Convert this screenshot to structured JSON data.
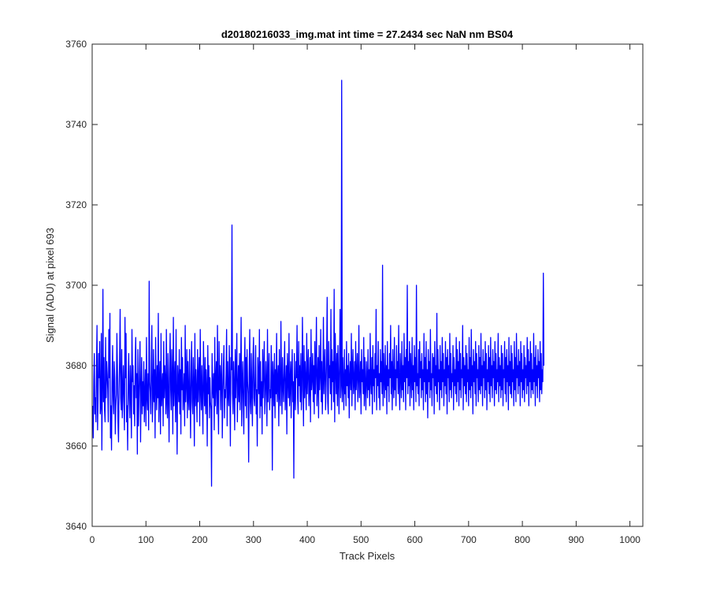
{
  "chart_data": {
    "type": "line",
    "title": "d20180216033_img.mat int time = 27.2434 sec  NaN nm BS04",
    "xlabel": "Track Pixels",
    "ylabel": "Signal (ADU) at pixel 693",
    "xlim": [
      0,
      1024
    ],
    "ylim": [
      3640,
      3760
    ],
    "xticks": [
      0,
      100,
      200,
      300,
      400,
      500,
      600,
      700,
      800,
      900,
      1000
    ],
    "yticks": [
      3640,
      3660,
      3680,
      3700,
      3720,
      3740,
      3760
    ],
    "grid": false,
    "series_color": "#0000ff",
    "series": [
      {
        "x_start": 1,
        "x_step": 1,
        "values": [
          3670,
          3662,
          3676,
          3683,
          3668,
          3672,
          3666,
          3679,
          3690,
          3664,
          3672,
          3683,
          3677,
          3686,
          3668,
          3670,
          3688,
          3659,
          3675,
          3699,
          3671,
          3682,
          3669,
          3666,
          3687,
          3672,
          3681,
          3678,
          3674,
          3666,
          3689,
          3677,
          3693,
          3662,
          3670,
          3659,
          3676,
          3685,
          3672,
          3668,
          3681,
          3677,
          3663,
          3670,
          3673,
          3688,
          3679,
          3666,
          3661,
          3674,
          3681,
          3694,
          3672,
          3669,
          3684,
          3667,
          3674,
          3680,
          3671,
          3664,
          3692,
          3677,
          3688,
          3666,
          3670,
          3659,
          3677,
          3683,
          3672,
          3667,
          3680,
          3674,
          3662,
          3689,
          3676,
          3680,
          3668,
          3675,
          3665,
          3681,
          3687,
          3672,
          3678,
          3658,
          3684,
          3665,
          3672,
          3679,
          3686,
          3661,
          3674,
          3682,
          3668,
          3676,
          3670,
          3681,
          3666,
          3673,
          3679,
          3665,
          3687,
          3672,
          3669,
          3678,
          3664,
          3701,
          3676,
          3673,
          3668,
          3681,
          3690,
          3666,
          3672,
          3684,
          3671,
          3679,
          3662,
          3687,
          3675,
          3669,
          3680,
          3672,
          3693,
          3666,
          3676,
          3681,
          3663,
          3688,
          3670,
          3674,
          3678,
          3665,
          3686,
          3672,
          3680,
          3676,
          3668,
          3689,
          3671,
          3667,
          3683,
          3673,
          3661,
          3679,
          3688,
          3674,
          3669,
          3684,
          3677,
          3663,
          3692,
          3670,
          3676,
          3681,
          3666,
          3689,
          3673,
          3658,
          3680,
          3676,
          3671,
          3684,
          3668,
          3679,
          3663,
          3687,
          3674,
          3682,
          3669,
          3673,
          3678,
          3665,
          3690,
          3671,
          3676,
          3684,
          3667,
          3681,
          3672,
          3669,
          3684,
          3673,
          3662,
          3678,
          3686,
          3671,
          3668,
          3682,
          3675,
          3660,
          3688,
          3670,
          3679,
          3673,
          3666,
          3684,
          3671,
          3677,
          3682,
          3665,
          3689,
          3674,
          3669,
          3680,
          3672,
          3663,
          3686,
          3676,
          3670,
          3682,
          3668,
          3679,
          3674,
          3660,
          3685,
          3673,
          3680,
          3667,
          3677,
          3671,
          3669,
          3650,
          3683,
          3675,
          3672,
          3678,
          3664,
          3687,
          3670,
          3676,
          3681,
          3668,
          3690,
          3672,
          3663,
          3686,
          3674,
          3680,
          3669,
          3677,
          3683,
          3662,
          3673,
          3679,
          3685,
          3667,
          3674,
          3672,
          3678,
          3689,
          3665,
          3681,
          3673,
          3670,
          3685,
          3676,
          3660,
          3682,
          3679,
          3715,
          3673,
          3668,
          3681,
          3675,
          3664,
          3684,
          3672,
          3679,
          3688,
          3666,
          3674,
          3680,
          3671,
          3683,
          3669,
          3677,
          3692,
          3665,
          3675,
          3681,
          3671,
          3663,
          3679,
          3687,
          3670,
          3682,
          3667,
          3684,
          3676,
          3673,
          3656,
          3678,
          3689,
          3671,
          3668,
          3683,
          3674,
          3665,
          3681,
          3687,
          3672,
          3670,
          3677,
          3685,
          3668,
          3674,
          3660,
          3682,
          3676,
          3673,
          3689,
          3667,
          3681,
          3670,
          3676,
          3663,
          3684,
          3672,
          3679,
          3686,
          3668,
          3673,
          3681,
          3675,
          3665,
          3689,
          3671,
          3677,
          3683,
          3669,
          3674,
          3672,
          3685,
          3678,
          3654,
          3681,
          3676,
          3670,
          3683,
          3667,
          3679,
          3673,
          3688,
          3671,
          3676,
          3680,
          3665,
          3684,
          3673,
          3670,
          3691,
          3677,
          3668,
          3682,
          3675,
          3671,
          3679,
          3686,
          3669,
          3674,
          3680,
          3663,
          3683,
          3677,
          3672,
          3688,
          3670,
          3675,
          3681,
          3667,
          3678,
          3684,
          3671,
          3676,
          3652,
          3683,
          3674,
          3669,
          3681,
          3677,
          3690,
          3672,
          3668,
          3686,
          3675,
          3680,
          3671,
          3683,
          3669,
          3674,
          3692,
          3678,
          3665,
          3685,
          3672,
          3681,
          3676,
          3669,
          3688,
          3673,
          3679,
          3684,
          3670,
          3675,
          3682,
          3666,
          3689,
          3674,
          3677,
          3683,
          3671,
          3680,
          3668,
          3686,
          3673,
          3679,
          3692,
          3670,
          3676,
          3682,
          3667,
          3685,
          3674,
          3678,
          3689,
          3671,
          3681,
          3668,
          3676,
          3692,
          3673,
          3679,
          3684,
          3669,
          3675,
          3682,
          3697,
          3671,
          3668,
          3686,
          3677,
          3680,
          3673,
          3694,
          3669,
          3684,
          3676,
          3681,
          3671,
          3699,
          3666,
          3688,
          3679,
          3673,
          3683,
          3670,
          3685,
          3677,
          3668,
          3681,
          3694,
          3672,
          3675,
          3751,
          3671,
          3682,
          3676,
          3669,
          3684,
          3673,
          3679,
          3670,
          3686,
          3675,
          3680,
          3672,
          3683,
          3667,
          3677,
          3681,
          3674,
          3688,
          3670,
          3679,
          3684,
          3673,
          3676,
          3681,
          3669,
          3686,
          3674,
          3678,
          3683,
          3671,
          3677,
          3690,
          3672,
          3675,
          3681,
          3668,
          3684,
          3676,
          3679,
          3673,
          3687,
          3670,
          3682,
          3675,
          3669,
          3681,
          3677,
          3672,
          3684,
          3674,
          3679,
          3670,
          3688,
          3676,
          3673,
          3682,
          3668,
          3685,
          3675,
          3679,
          3671,
          3683,
          3677,
          3694,
          3669,
          3680,
          3675,
          3686,
          3672,
          3678,
          3669,
          3684,
          3676,
          3681,
          3673,
          3705,
          3670,
          3683,
          3677,
          3672,
          3685,
          3674,
          3680,
          3668,
          3686,
          3675,
          3679,
          3671,
          3683,
          3677,
          3690,
          3673,
          3681,
          3669,
          3684,
          3676,
          3672,
          3687,
          3674,
          3679,
          3670,
          3685,
          3677,
          3681,
          3673,
          3690,
          3675,
          3669,
          3683,
          3678,
          3672,
          3686,
          3674,
          3680,
          3671,
          3688,
          3676,
          3682,
          3669,
          3684,
          3677,
          3700,
          3673,
          3681,
          3675,
          3686,
          3670,
          3683,
          3678,
          3672,
          3687,
          3674,
          3680,
          3669,
          3685,
          3676,
          3682,
          3671,
          3700,
          3675,
          3678,
          3673,
          3684,
          3670,
          3686,
          3677,
          3681,
          3672,
          3683,
          3674,
          3679,
          3669,
          3688,
          3676,
          3682,
          3671,
          3686,
          3673,
          3679,
          3667,
          3684,
          3676,
          3681,
          3672,
          3689,
          3674,
          3678,
          3670,
          3683,
          3677,
          3682,
          3668,
          3686,
          3675,
          3680,
          3673,
          3693,
          3671,
          3684,
          3676,
          3679,
          3669,
          3685,
          3674,
          3681,
          3672,
          3687,
          3676,
          3683,
          3670,
          3679,
          3675,
          3686,
          3673,
          3682,
          3668,
          3684,
          3677,
          3680,
          3671,
          3688,
          3674,
          3683,
          3672,
          3678,
          3676,
          3685,
          3669,
          3682,
          3675,
          3679,
          3673,
          3687,
          3671,
          3684,
          3676,
          3681,
          3670,
          3686,
          3674,
          3683,
          3672,
          3679,
          3677,
          3690,
          3669,
          3682,
          3675,
          3680,
          3673,
          3685,
          3671,
          3683,
          3676,
          3679,
          3670,
          3687,
          3674,
          3682,
          3672,
          3689,
          3675,
          3680,
          3668,
          3684,
          3676,
          3681,
          3673,
          3686,
          3670,
          3683,
          3677,
          3679,
          3671,
          3685,
          3674,
          3682,
          3673,
          3688,
          3675,
          3680,
          3670,
          3684,
          3677,
          3681,
          3672,
          3686,
          3674,
          3683,
          3669,
          3679,
          3676,
          3685,
          3673,
          3682,
          3671,
          3687,
          3675,
          3680,
          3672,
          3684,
          3677,
          3681,
          3670,
          3686,
          3674,
          3683,
          3673,
          3679,
          3676,
          3688,
          3671,
          3682,
          3675,
          3680,
          3672,
          3685,
          3674,
          3683,
          3670,
          3679,
          3677,
          3686,
          3673,
          3682,
          3671,
          3684,
          3676,
          3680,
          3669,
          3687,
          3675,
          3681,
          3673,
          3685,
          3672,
          3683,
          3676,
          3679,
          3670,
          3686,
          3674,
          3682,
          3671,
          3688,
          3677,
          3680,
          3673,
          3684,
          3675,
          3681,
          3670,
          3686,
          3676,
          3683,
          3672,
          3679,
          3674,
          3685,
          3671,
          3682,
          3677,
          3680,
          3673,
          3687,
          3675,
          3684,
          3670,
          3681,
          3676,
          3686,
          3672,
          3683,
          3674,
          3679,
          3673,
          3688,
          3676,
          3682,
          3670,
          3685,
          3675,
          3680,
          3672,
          3684,
          3677,
          3681,
          3671,
          3686,
          3674,
          3683,
          3673,
          3679,
          3676,
          3703,
          3680
        ]
      }
    ]
  }
}
